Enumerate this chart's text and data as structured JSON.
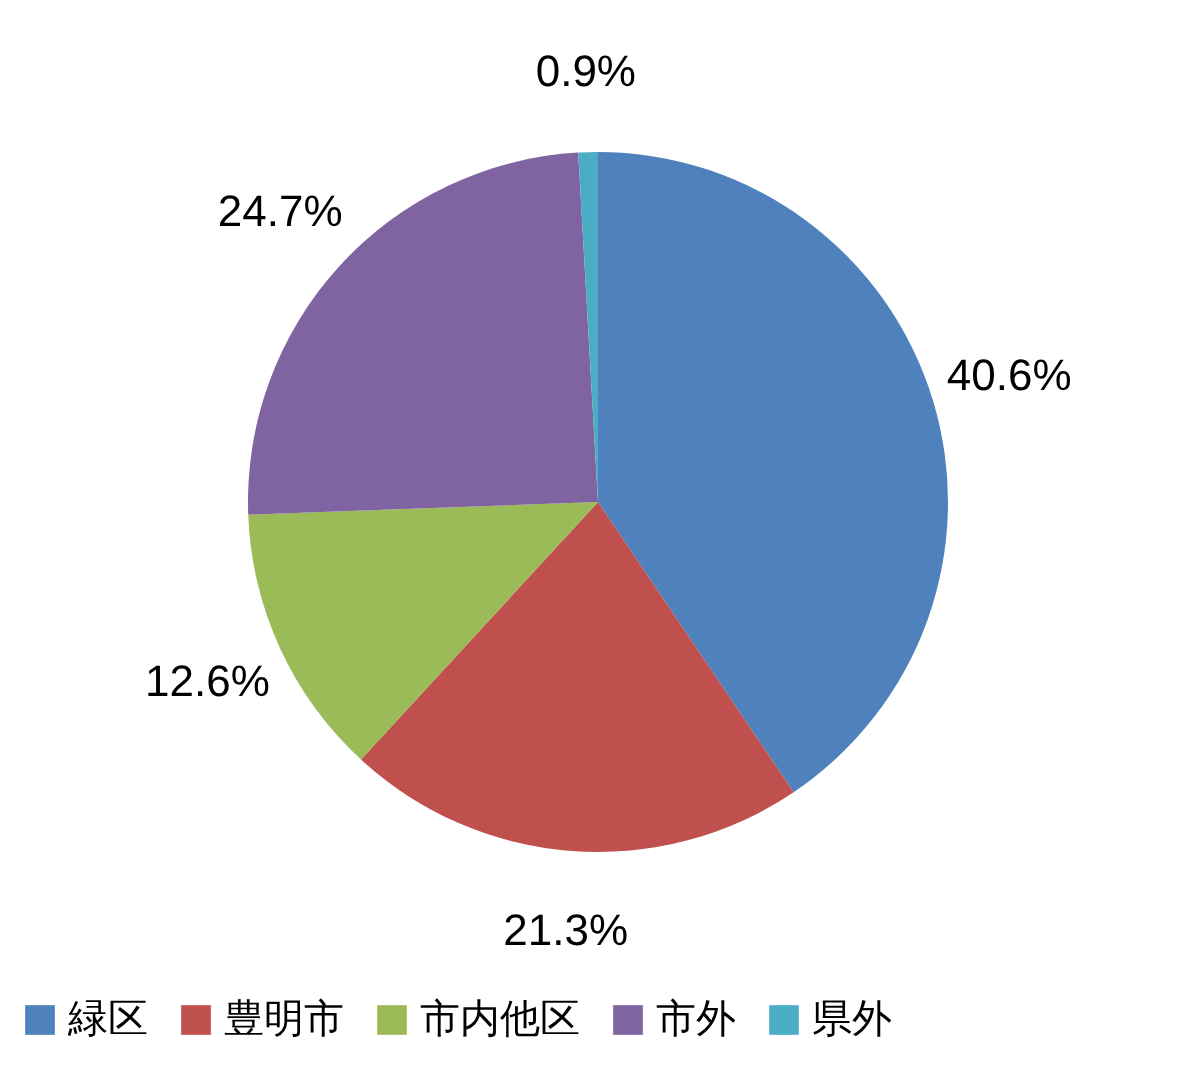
{
  "chart_data": {
    "type": "pie",
    "categories": [
      "緑区",
      "豊明市",
      "市内他区",
      "市外",
      "県外"
    ],
    "values": [
      40.6,
      21.3,
      12.6,
      24.7,
      0.9
    ],
    "colors": [
      "#4f81bd",
      "#c0504d",
      "#9bbb59",
      "#8064a2",
      "#4bacc6"
    ],
    "value_labels": [
      "40.6%",
      "21.3%",
      "12.6%",
      "24.7%",
      "0.9%"
    ],
    "legend": "bottom"
  }
}
